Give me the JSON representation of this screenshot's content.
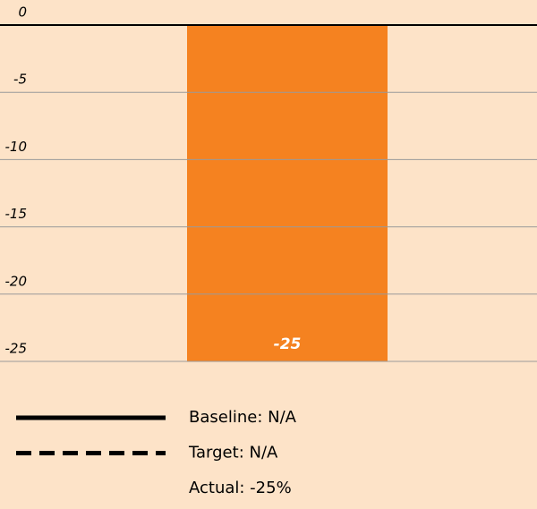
{
  "chart_data": {
    "type": "bar",
    "categories": [
      null
    ],
    "values": [
      -25
    ],
    "color": "#f58220",
    "ylim": [
      -25,
      0
    ],
    "yticks": [
      0,
      -5,
      -10,
      -15,
      -20,
      -25
    ],
    "grid": true,
    "legend": [
      {
        "label": "Baseline: N/A",
        "line": "solid"
      },
      {
        "label": "Target: N/A",
        "line": "dashed"
      },
      {
        "label": "Actual: -25%"
      }
    ]
  }
}
